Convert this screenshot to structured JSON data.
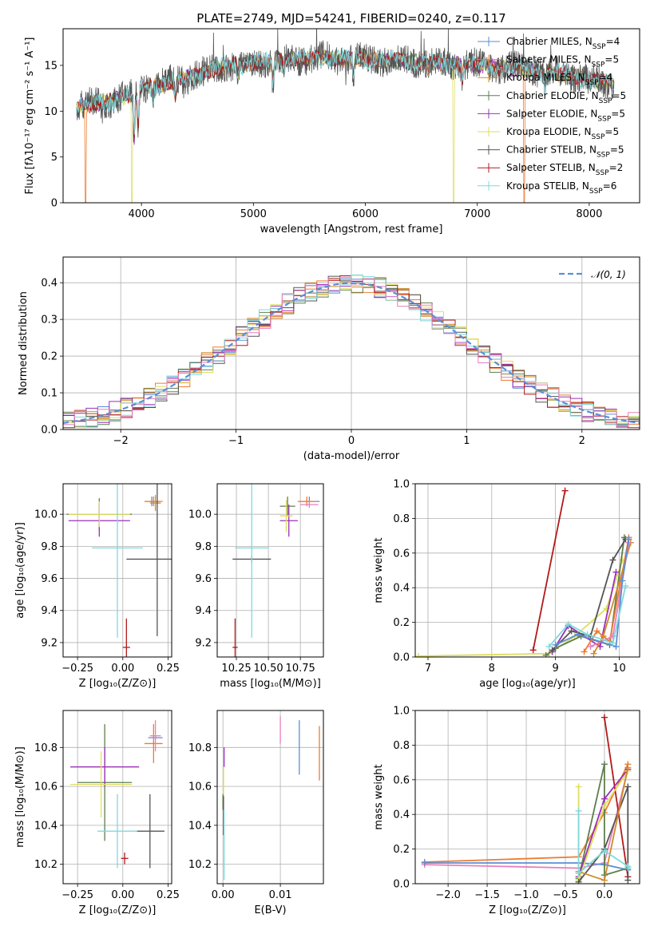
{
  "title": "PLATE=2749, MJD=54241, FIBERID=0240, z=0.117",
  "colors": {
    "chabrier_miles": "#5b8ed6",
    "salpeter_miles": "#ee7b2f",
    "kroupa_miles": "#d18a2a",
    "chabrier_elodie": "#5e7e4c",
    "salpeter_elodie": "#9b30b8",
    "kroupa_elodie": "#dede60",
    "chabrier_stelib": "#555555",
    "salpeter_stelib": "#b21a1a",
    "kroupa_stelib": "#7fd8dc",
    "pink": "#e77fbf",
    "gaussian": "#5b8ed6",
    "grid": "#b0b0b0"
  },
  "legend": [
    {
      "label": "Chabrier MILES, N",
      "sub": "SSP",
      "suffix": "=4",
      "key": "chabrier_miles"
    },
    {
      "label": "Salpeter MILES, N",
      "sub": "SSP",
      "suffix": "=5",
      "key": "salpeter_miles"
    },
    {
      "label": "Kroupa MILES, N",
      "sub": "SSP",
      "suffix": "=4",
      "key": "kroupa_miles"
    },
    {
      "label": "Chabrier ELODIE, N",
      "sub": "SSP",
      "suffix": "=5",
      "key": "chabrier_elodie"
    },
    {
      "label": "Salpeter ELODIE, N",
      "sub": "SSP",
      "suffix": "=5",
      "key": "salpeter_elodie"
    },
    {
      "label": "Kroupa ELODIE, N",
      "sub": "SSP",
      "suffix": "=5",
      "key": "kroupa_elodie"
    },
    {
      "label": "Chabrier STELIB, N",
      "sub": "SSP",
      "suffix": "=5",
      "key": "chabrier_stelib"
    },
    {
      "label": "Salpeter STELIB, N",
      "sub": "SSP",
      "suffix": "=2",
      "key": "salpeter_stelib"
    },
    {
      "label": "Kroupa STELIB, N",
      "sub": "SSP",
      "suffix": "=6",
      "key": "kroupa_stelib"
    }
  ],
  "gauss_legend": "𝒩(0, 1)",
  "chart_data": [
    {
      "id": "spectrum",
      "type": "line",
      "xlabel": "wavelength [Angstrom, rest frame]",
      "ylabel": "Flux [fλ10⁻¹⁷ erg cm⁻² s⁻¹ A⁻¹]",
      "xlim": [
        3300,
        8450
      ],
      "ylim": [
        0,
        19
      ],
      "xticks": [
        4000,
        5000,
        6000,
        7000,
        8000
      ],
      "yticks": [
        0,
        5,
        10,
        15
      ],
      "range": [
        3420,
        8220
      ],
      "continuum": [
        [
          3420,
          10.5
        ],
        [
          3700,
          11.0
        ],
        [
          3900,
          11.8
        ],
        [
          4000,
          12.6
        ],
        [
          4200,
          13.0
        ],
        [
          4400,
          13.7
        ],
        [
          4600,
          14.4
        ],
        [
          4800,
          15.0
        ],
        [
          5000,
          15.3
        ],
        [
          5200,
          15.5
        ],
        [
          5500,
          15.8
        ],
        [
          5800,
          15.8
        ],
        [
          6000,
          15.7
        ],
        [
          6300,
          15.5
        ],
        [
          6600,
          15.3
        ],
        [
          6900,
          15.1
        ],
        [
          7200,
          14.8
        ],
        [
          7500,
          14.5
        ],
        [
          7800,
          14.0
        ],
        [
          8000,
          13.4
        ],
        [
          8220,
          13.0
        ]
      ],
      "absorption": [
        [
          3934,
          5.0
        ],
        [
          3969,
          4.0
        ],
        [
          4102,
          1.5
        ],
        [
          4304,
          2.0
        ],
        [
          4861,
          1.5
        ],
        [
          5175,
          2.5
        ],
        [
          5270,
          1.0
        ],
        [
          5893,
          2.0
        ],
        [
          6563,
          1.0
        ],
        [
          6867,
          1.5
        ],
        [
          7606,
          1.5
        ]
      ],
      "dropouts": [
        {
          "key": "salpeter_miles",
          "x": 3500
        },
        {
          "key": "kroupa_elodie",
          "x": 3915
        },
        {
          "key": "kroupa_elodie",
          "x": 6790
        },
        {
          "key": "salpeter_miles",
          "x": 7420
        }
      ]
    },
    {
      "id": "residuals",
      "type": "histogram",
      "xlabel": "(data-model)/error",
      "ylabel": "Normed distribution",
      "xlim": [
        -2.5,
        2.5
      ],
      "ylim": [
        0,
        0.47
      ],
      "xticks": [
        -2,
        -1,
        0,
        1,
        2
      ],
      "yticks": [
        0.0,
        0.1,
        0.2,
        0.3,
        0.4
      ],
      "bin_width": 0.1,
      "noise_amplitude": 0.028,
      "series_keys": [
        "chabrier_miles",
        "salpeter_miles",
        "kroupa_miles",
        "chabrier_elodie",
        "salpeter_elodie",
        "kroupa_elodie",
        "chabrier_stelib",
        "salpeter_stelib",
        "kroupa_stelib",
        "pink"
      ]
    },
    {
      "id": "age_vs_Z",
      "type": "scatter",
      "xlabel": "Z [log₁₀(Z/Z⊙)]",
      "ylabel": "age  [log₁₀(age/yr)]",
      "xlim": [
        -0.33,
        0.27
      ],
      "ylim": [
        9.11,
        10.19
      ],
      "xticks": [
        -0.25,
        0.0,
        0.25
      ],
      "yticks": [
        9.2,
        9.4,
        9.6,
        9.8,
        10.0
      ],
      "points": [
        {
          "key": "chabrier_miles",
          "x": 0.16,
          "y": 10.08,
          "xerr": 0.04,
          "yerr": 0.03
        },
        {
          "key": "salpeter_miles",
          "x": 0.17,
          "y": 10.08,
          "xerr": 0.05,
          "yerr": 0.03
        },
        {
          "key": "kroupa_miles",
          "x": 0.18,
          "y": 10.07,
          "xerr": 0.03,
          "yerr": 0.05
        },
        {
          "key": "chabrier_elodie",
          "x": -0.13,
          "y": 10.0,
          "xerr": 0.18,
          "yerr": 0.1
        },
        {
          "key": "salpeter_elodie",
          "x": -0.13,
          "y": 9.96,
          "xerr": 0.17,
          "yerr": 0.1
        },
        {
          "key": "kroupa_elodie",
          "x": -0.13,
          "y": 10.0,
          "xerr": 0.17,
          "yerr": 0.08
        },
        {
          "key": "chabrier_stelib",
          "x": 0.19,
          "y": 9.72,
          "xerr": 0.17,
          "yerr": 0.48
        },
        {
          "key": "salpeter_stelib",
          "x": 0.02,
          "y": 9.17,
          "xerr": 0.02,
          "yerr": 0.18
        },
        {
          "key": "kroupa_stelib",
          "x": -0.03,
          "y": 9.79,
          "xerr": 0.14,
          "yerr": 0.56
        }
      ]
    },
    {
      "id": "age_vs_mass",
      "type": "scatter",
      "xlabel": "mass [log₁₀(M/M⊙)]",
      "ylabel": "",
      "xlim": [
        10.1,
        10.93
      ],
      "ylim": [
        9.11,
        10.19
      ],
      "xticks": [
        10.25,
        10.5,
        10.75
      ],
      "yticks": [
        9.2,
        9.4,
        9.6,
        9.8,
        10.0
      ],
      "points": [
        {
          "key": "chabrier_miles",
          "x": 10.82,
          "y": 10.08,
          "xerr": 0.08,
          "yerr": 0.03
        },
        {
          "key": "salpeter_miles",
          "x": 10.8,
          "y": 10.08,
          "xerr": 0.07,
          "yerr": 0.03
        },
        {
          "key": "pink",
          "x": 10.82,
          "y": 10.06,
          "xerr": 0.07,
          "yerr": 0.02
        },
        {
          "key": "chabrier_elodie",
          "x": 10.65,
          "y": 10.05,
          "xerr": 0.06,
          "yerr": 0.06
        },
        {
          "key": "salpeter_elodie",
          "x": 10.66,
          "y": 9.96,
          "xerr": 0.07,
          "yerr": 0.1
        },
        {
          "key": "kroupa_elodie",
          "x": 10.64,
          "y": 9.99,
          "xerr": 0.05,
          "yerr": 0.1
        },
        {
          "key": "chabrier_stelib",
          "x": 10.37,
          "y": 9.72,
          "xerr": 0.15,
          "yerr": 0.02
        },
        {
          "key": "salpeter_stelib",
          "x": 10.24,
          "y": 9.17,
          "xerr": 0.02,
          "yerr": 0.18
        },
        {
          "key": "kroupa_stelib",
          "x": 10.37,
          "y": 9.79,
          "xerr": 0.13,
          "yerr": 0.56
        }
      ]
    },
    {
      "id": "weight_vs_age",
      "type": "line",
      "xlabel": "age  [log₁₀(age/yr)]",
      "ylabel": "mass weight",
      "xlim": [
        6.8,
        10.32
      ],
      "ylim": [
        0,
        1.0
      ],
      "xticks": [
        7,
        8,
        9,
        10
      ],
      "yticks": [
        0.0,
        0.2,
        0.4,
        0.6,
        0.8,
        1.0
      ],
      "series": [
        {
          "key": "salpeter_stelib",
          "points": [
            [
              8.65,
              0.04
            ],
            [
              9.15,
              0.96
            ]
          ]
        },
        {
          "key": "kroupa_elodie",
          "points": [
            [
              6.85,
              0.005
            ],
            [
              8.9,
              0.02
            ],
            [
              9.3,
              0.12
            ],
            [
              9.8,
              0.28
            ],
            [
              10.05,
              0.56
            ]
          ]
        },
        {
          "key": "chabrier_elodie",
          "points": [
            [
              8.85,
              0.01
            ],
            [
              9.0,
              0.05
            ],
            [
              9.4,
              0.12
            ],
            [
              9.85,
              0.07
            ],
            [
              10.08,
              0.69
            ]
          ]
        },
        {
          "key": "salpeter_elodie",
          "points": [
            [
              8.95,
              0.03
            ],
            [
              9.2,
              0.18
            ],
            [
              9.7,
              0.06
            ],
            [
              9.95,
              0.49
            ]
          ]
        },
        {
          "key": "chabrier_stelib",
          "points": [
            [
              8.95,
              0.04
            ],
            [
              9.25,
              0.15
            ],
            [
              9.55,
              0.12
            ],
            [
              9.9,
              0.56
            ],
            [
              10.1,
              0.68
            ]
          ]
        },
        {
          "key": "salpeter_miles",
          "points": [
            [
              9.45,
              0.03
            ],
            [
              9.65,
              0.15
            ],
            [
              9.85,
              0.09
            ],
            [
              10.15,
              0.69
            ]
          ]
        },
        {
          "key": "kroupa_miles",
          "points": [
            [
              9.6,
              0.02
            ],
            [
              9.75,
              0.12
            ],
            [
              10.18,
              0.66
            ]
          ]
        },
        {
          "key": "pink",
          "points": [
            [
              9.55,
              0.06
            ],
            [
              9.9,
              0.12
            ],
            [
              10.15,
              0.66
            ]
          ]
        },
        {
          "key": "chabrier_miles",
          "points": [
            [
              9.0,
              0.07
            ],
            [
              9.35,
              0.13
            ],
            [
              9.95,
              0.06
            ],
            [
              10.05,
              0.44
            ],
            [
              10.15,
              0.68
            ]
          ]
        },
        {
          "key": "kroupa_stelib",
          "points": [
            [
              8.9,
              0.06
            ],
            [
              9.2,
              0.19
            ],
            [
              9.5,
              0.13
            ],
            [
              9.9,
              0.08
            ],
            [
              10.1,
              0.41
            ]
          ]
        }
      ]
    },
    {
      "id": "mass_vs_Z",
      "type": "scatter",
      "xlabel": "Z [log₁₀(Z/Z⊙)]",
      "ylabel": "mass [log₁₀(M/M⊙)]",
      "xlim": [
        -0.33,
        0.27
      ],
      "ylim": [
        10.1,
        10.99
      ],
      "xticks": [
        -0.25,
        0.0,
        0.25
      ],
      "yticks": [
        10.2,
        10.4,
        10.6,
        10.8
      ],
      "points": [
        {
          "key": "chabrier_miles",
          "x": 0.18,
          "y": 10.85,
          "xerr": 0.04,
          "yerr": 0.01
        },
        {
          "key": "salpeter_miles",
          "x": 0.17,
          "y": 10.82,
          "xerr": 0.05,
          "yerr": 0.1
        },
        {
          "key": "pink",
          "x": 0.18,
          "y": 10.86,
          "xerr": 0.03,
          "yerr": 0.08
        },
        {
          "key": "chabrier_elodie",
          "x": -0.1,
          "y": 10.62,
          "xerr": 0.15,
          "yerr": 0.3
        },
        {
          "key": "salpeter_elodie",
          "x": -0.1,
          "y": 10.7,
          "xerr": 0.19,
          "yerr": 0.1
        },
        {
          "key": "kroupa_elodie",
          "x": -0.12,
          "y": 10.61,
          "xerr": 0.17,
          "yerr": 0.17
        },
        {
          "key": "chabrier_stelib",
          "x": 0.15,
          "y": 10.37,
          "xerr": 0.08,
          "yerr": 0.19
        },
        {
          "key": "salpeter_stelib",
          "x": 0.01,
          "y": 10.23,
          "xerr": 0.02,
          "yerr": 0.03
        },
        {
          "key": "kroupa_stelib",
          "x": -0.03,
          "y": 10.37,
          "xerr": 0.11,
          "yerr": 0.19
        }
      ]
    },
    {
      "id": "mass_vs_ebv",
      "type": "scatter",
      "xlabel": "E(B-V)",
      "ylabel": "",
      "xlim": [
        -0.001,
        0.0175
      ],
      "ylim": [
        10.1,
        10.99
      ],
      "xticks": [
        0.0,
        0.01
      ],
      "yticks": [
        10.2,
        10.4,
        10.6,
        10.8
      ],
      "points": [
        {
          "key": "pink",
          "x": 0.01,
          "y": 10.89,
          "xerr": 0,
          "yerr": 0.07
        },
        {
          "key": "chabrier_miles",
          "x": 0.0133,
          "y": 10.8,
          "xerr": 0,
          "yerr": 0.14
        },
        {
          "key": "salpeter_miles",
          "x": 0.0168,
          "y": 10.77,
          "xerr": 0,
          "yerr": 0.14
        },
        {
          "key": "salpeter_elodie",
          "x": 0.0002,
          "y": 10.75,
          "xerr": 0,
          "yerr": 0.05
        },
        {
          "key": "kroupa_elodie",
          "x": 0.0001,
          "y": 10.61,
          "xerr": 0,
          "yerr": 0.09
        },
        {
          "key": "chabrier_elodie",
          "x": 0.0,
          "y": 10.52,
          "xerr": 0,
          "yerr": 0.04
        },
        {
          "key": "chabrier_stelib",
          "x": 0.0001,
          "y": 10.45,
          "xerr": 0,
          "yerr": 0.1
        },
        {
          "key": "kroupa_stelib",
          "x": 0.0002,
          "y": 10.3,
          "xerr": 0,
          "yerr": 0.18
        }
      ]
    },
    {
      "id": "weight_vs_Z",
      "type": "line",
      "xlabel": "Z [log₁₀(Z/Z⊙)]",
      "ylabel": "mass weight",
      "xlim": [
        -2.42,
        0.45
      ],
      "ylim": [
        0,
        1.0
      ],
      "xticks": [
        -2.0,
        -1.5,
        -1.0,
        -0.5,
        0.0
      ],
      "yticks": [
        0.0,
        0.2,
        0.4,
        0.6,
        0.8,
        1.0
      ],
      "tick_labels_x": [
        "−2.0",
        "−1.5",
        "−1.0",
        "−0.5",
        "0.0"
      ],
      "series": [
        {
          "key": "salpeter_miles",
          "points": [
            [
              -2.3,
              0.125
            ],
            [
              -0.33,
              0.155
            ],
            [
              0.0,
              0.41
            ],
            [
              0.3,
              0.69
            ]
          ]
        },
        {
          "key": "pink",
          "points": [
            [
              -2.3,
              0.11
            ],
            [
              -0.33,
              0.09
            ],
            [
              0.0,
              0.12
            ],
            [
              0.3,
              0.66
            ]
          ]
        },
        {
          "key": "chabrier_miles",
          "points": [
            [
              -2.3,
              0.12
            ],
            [
              -0.33,
              0.12
            ],
            [
              0.0,
              0.11
            ],
            [
              0.3,
              0.08
            ]
          ]
        },
        {
          "key": "salpeter_stelib",
          "points": [
            [
              0.0,
              0.96
            ],
            [
              0.3,
              0.04
            ]
          ]
        },
        {
          "key": "chabrier_elodie",
          "points": [
            [
              -0.33,
              0.03
            ],
            [
              0.0,
              0.69
            ],
            [
              0.0,
              0.05
            ],
            [
              0.3,
              0.09
            ]
          ]
        },
        {
          "key": "salpeter_elodie",
          "points": [
            [
              -0.33,
              0.04
            ],
            [
              0.0,
              0.49
            ],
            [
              0.3,
              0.66
            ]
          ]
        },
        {
          "key": "kroupa_elodie",
          "points": [
            [
              -0.33,
              0.56
            ],
            [
              -0.33,
              0.02
            ],
            [
              0.0,
              0.45
            ],
            [
              0.3,
              0.65
            ]
          ]
        },
        {
          "key": "chabrier_stelib",
          "points": [
            [
              -0.33,
              0.01
            ],
            [
              0.0,
              0.2
            ],
            [
              0.3,
              0.56
            ],
            [
              0.3,
              0.02
            ]
          ]
        },
        {
          "key": "kroupa_miles",
          "points": [
            [
              -0.33,
              0.07
            ],
            [
              0.0,
              0.02
            ],
            [
              0.3,
              0.67
            ]
          ]
        },
        {
          "key": "kroupa_stelib",
          "points": [
            [
              -0.33,
              0.42
            ],
            [
              -0.33,
              0.06
            ],
            [
              0.0,
              0.19
            ],
            [
              0.3,
              0.1
            ],
            [
              0.3,
              0.09
            ]
          ]
        }
      ]
    }
  ]
}
